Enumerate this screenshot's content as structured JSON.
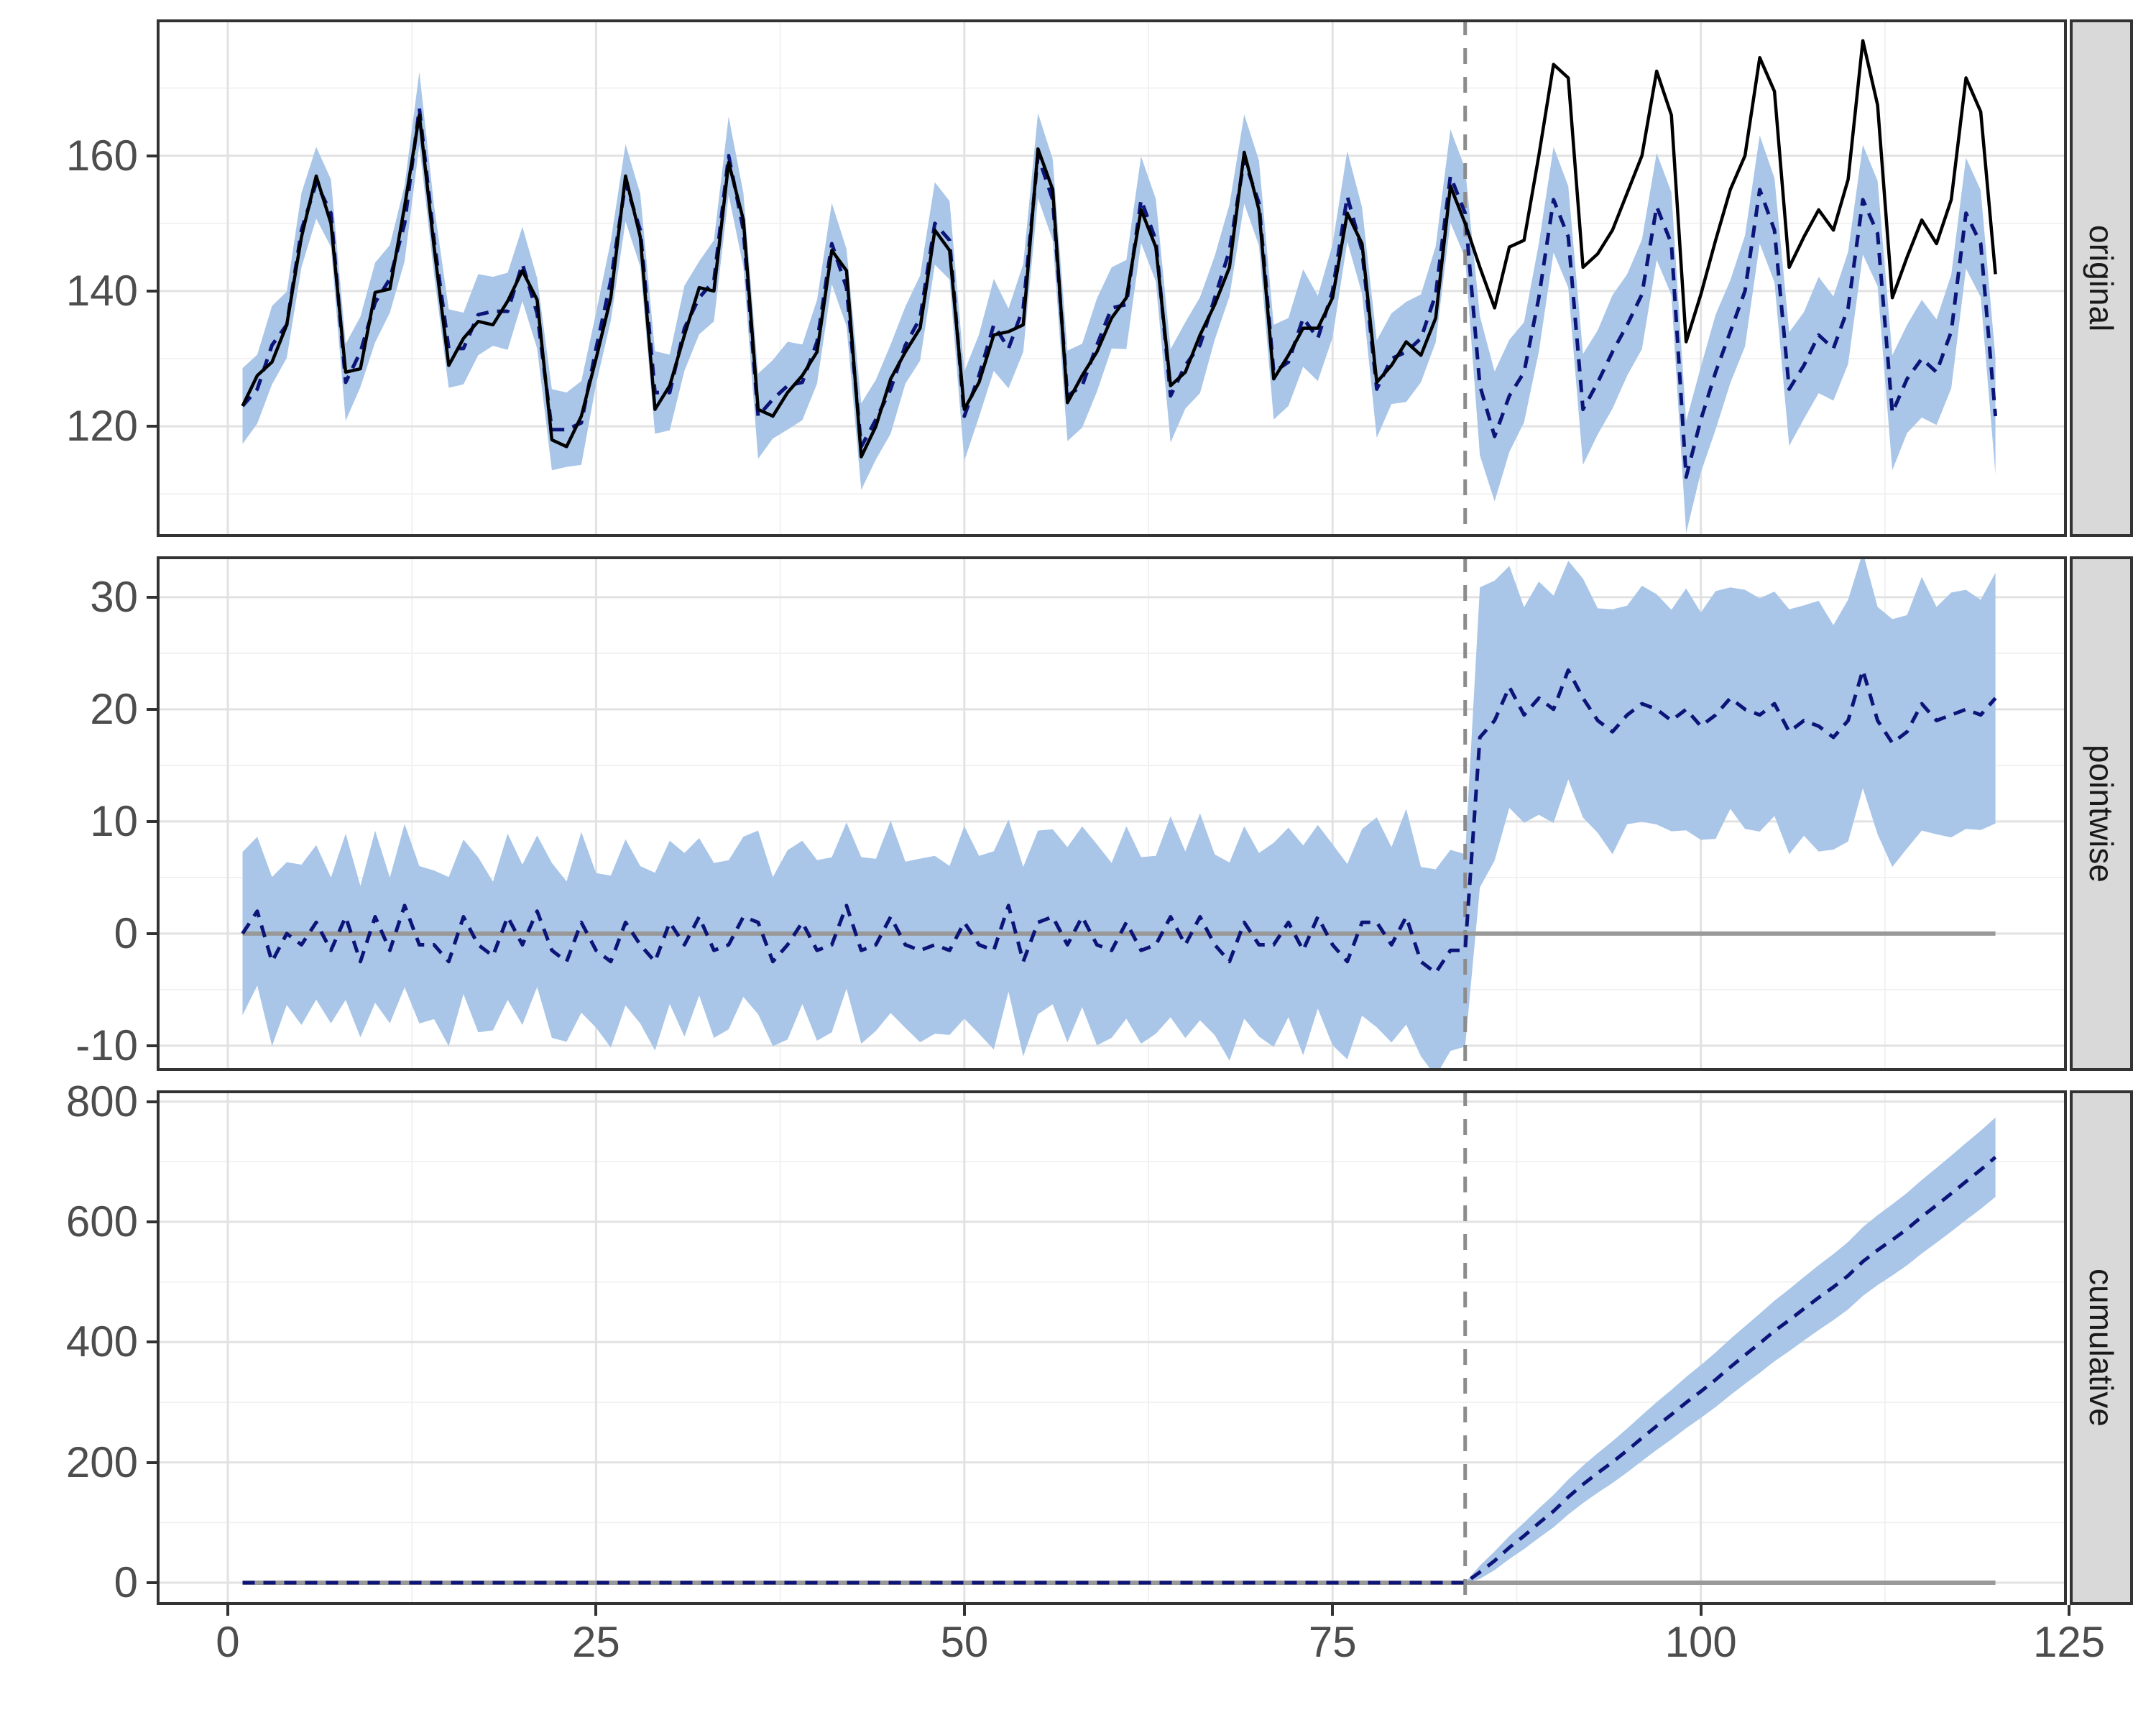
{
  "chart_data": [
    {
      "panel": "original",
      "type": "line",
      "strip_label": "original",
      "x_start": 1,
      "ylim": [
        103.65,
        180.15
      ],
      "yticks": [
        120,
        140,
        160
      ],
      "yticks_minor": [
        110,
        130,
        150,
        170
      ],
      "series": [
        {
          "name": "observed",
          "style": "solid-black",
          "values": [
            123,
            127.5,
            129.5,
            135,
            148,
            157,
            150,
            128,
            128.5,
            139.8,
            140.3,
            152.5,
            166,
            146.5,
            129,
            133,
            135.5,
            135,
            138.5,
            143,
            138.7,
            118,
            117,
            121.5,
            130,
            139,
            157,
            148,
            122.5,
            126,
            133.5,
            140.5,
            140,
            159,
            150.5,
            122.5,
            121.5,
            125,
            127.5,
            131,
            146,
            143,
            115.5,
            120,
            127,
            131,
            134.5,
            149,
            146,
            122.5,
            126.5,
            133.5,
            134,
            135,
            161,
            155,
            123.5,
            127.5,
            131,
            136,
            139,
            152,
            146.5,
            126,
            128,
            133.5,
            138,
            143.5,
            160.5,
            152,
            127,
            130.5,
            134.5,
            134.5,
            139,
            151.5,
            147,
            126.5,
            129,
            132.5,
            130.5,
            136,
            155.5,
            150,
            143.5,
            137.5,
            146.5,
            147.5,
            160,
            173.5,
            171.5,
            143.5,
            145.5,
            149,
            154.5,
            160,
            172.5,
            166,
            132.5,
            139.5,
            147.5,
            155,
            160,
            174.5,
            169.5,
            143.5,
            148,
            152,
            149,
            156.5,
            177,
            167.5,
            139,
            145,
            150.5,
            147,
            153.5,
            171.5,
            166.5,
            142.5
          ]
        },
        {
          "name": "predicted",
          "style": "dashed-navy",
          "values": [
            123,
            125.5,
            132,
            135,
            149,
            156,
            151.5,
            126.5,
            131,
            138.3,
            141.8,
            150,
            167,
            147.5,
            131.5,
            131.5,
            136.5,
            137,
            137,
            144,
            136.7,
            119.5,
            119.5,
            120.5,
            131.5,
            141.5,
            156,
            149,
            125,
            125,
            134.5,
            139,
            141.5,
            160,
            149,
            121.5,
            124,
            126,
            126.5,
            132.5,
            147,
            140.5,
            117,
            121,
            125.5,
            132,
            136,
            150,
            147.5,
            121.5,
            127.5,
            135,
            131.5,
            137.5,
            160,
            153.5,
            124.5,
            126,
            132,
            137.5,
            138,
            153.5,
            147.5,
            124.5,
            129,
            132,
            139,
            146,
            159.5,
            153,
            128,
            129.5,
            136,
            133,
            140,
            154,
            146,
            125.5,
            130,
            131,
            133,
            139.5,
            157,
            151.5,
            126,
            118.5,
            124.5,
            128,
            139,
            153.5,
            148,
            122.5,
            126.5,
            131,
            135,
            139.5,
            152.5,
            147,
            112.5,
            121,
            128,
            134,
            140,
            155,
            149,
            125.5,
            129,
            133.5,
            131.5,
            137.5,
            153.5,
            148.5,
            122,
            127,
            130,
            128,
            134,
            151.5,
            147,
            121.5
          ]
        }
      ],
      "ribbon": {
        "around": "predicted",
        "halfwidth": [
          5.6,
          5.1,
          5.8,
          4.9,
          5.5,
          5.3,
          5.0,
          5.7,
          5.2,
          5.9,
          5.0,
          5.6,
          5.4,
          5.1,
          5.8,
          5.3,
          6.0,
          5.1,
          5.7,
          5.5,
          5.2,
          6.0,
          5.5,
          6.2,
          5.3,
          5.9,
          5.7,
          5.4,
          6.1,
          5.6,
          6.3,
          5.4,
          6.0,
          5.8,
          5.5,
          6.3,
          5.8,
          6.5,
          5.6,
          6.2,
          6.0,
          5.7,
          6.4,
          5.9,
          6.6,
          5.7,
          6.3,
          6.1,
          5.8,
          6.6,
          6.1,
          6.8,
          5.9,
          6.5,
          6.3,
          6.0,
          6.7,
          6.2,
          6.9,
          6.0,
          6.6,
          6.4,
          6.1,
          6.9,
          6.4,
          7.1,
          6.2,
          6.8,
          6.6,
          6.3,
          7.0,
          6.5,
          7.2,
          6.3,
          6.9,
          6.7,
          6.4,
          7.2,
          6.7,
          7.4,
          6.5,
          7.1,
          6.9,
          6.6,
          10.3,
          9.6,
          8.3,
          7.4,
          8.0,
          7.8,
          7.5,
          8.2,
          7.7,
          8.4,
          7.5,
          8.1,
          7.9,
          7.6,
          8.3,
          7.8,
          8.5,
          7.6,
          8.2,
          8.0,
          7.7,
          8.4,
          7.9,
          8.6,
          7.7,
          8.3,
          8.1,
          7.8,
          8.5,
          8.0,
          8.7,
          7.8,
          8.4,
          8.2,
          7.9,
          8.6
        ]
      }
    },
    {
      "panel": "pointwise",
      "type": "line",
      "strip_label": "pointwise",
      "derived": "observed_minus_predicted",
      "ribbon_scale": 1.3,
      "zero_line": true,
      "ylim": [
        -12.25,
        33.65
      ],
      "yticks": [
        -10,
        0,
        10,
        20,
        30
      ],
      "yticks_minor": [
        -5,
        5,
        15,
        25
      ]
    },
    {
      "panel": "cumulative",
      "type": "line",
      "strip_label": "cumulative",
      "zero_line": true,
      "pre_value": 0,
      "post_x_start": 85,
      "values_post": [
        17.5,
        36.5,
        58.5,
        78,
        99,
        119,
        142.5,
        163.5,
        182.5,
        200.5,
        220,
        240.5,
        260.5,
        279.5,
        299.5,
        318,
        337.5,
        358.5,
        378.5,
        398,
        418.5,
        436.5,
        455.5,
        474,
        491.5,
        510.5,
        534,
        553,
        570,
        588,
        608.5,
        627.5,
        647,
        667,
        686.5,
        707.5
      ],
      "ci_halfwidth_post": [
        11,
        15.6,
        19.1,
        22,
        24.6,
        26.9,
        29.1,
        31.1,
        33,
        34.8,
        36.5,
        38.1,
        39.7,
        41.2,
        42.6,
        44,
        45.4,
        46.7,
        47.9,
        49.2,
        50.4,
        51.6,
        52.8,
        53.9,
        55,
        56.1,
        57.2,
        58.2,
        59.2,
        60.2,
        61.2,
        62.2,
        63.2,
        64.1,
        65.1,
        66
      ],
      "ylim": [
        -37,
        818.6
      ],
      "yticks": [
        0,
        200,
        400,
        600,
        800
      ],
      "yticks_minor": [
        100,
        300,
        500,
        700
      ]
    }
  ],
  "x_axis": {
    "xlim": [
      -4.83,
      124.85
    ],
    "ticks": [
      0,
      25,
      50,
      75,
      100,
      125
    ],
    "tick_labels": [
      "0",
      "25",
      "50",
      "75",
      "100",
      "125"
    ],
    "ticks_minor": [
      12.5,
      37.5,
      62.5,
      87.5,
      112.5
    ]
  },
  "intervention_x": 84,
  "n_points": 120,
  "colors": {
    "ribbon": "#A9C6E8",
    "predicted": "#0D1478",
    "observed": "#000000",
    "zero_line": "#999999",
    "intervention_line": "#8C8C8C",
    "grid_major": "#E2E2E2",
    "grid_minor": "#F0F0F0",
    "panel_border": "#333333",
    "strip_bg": "#D9D9D9",
    "strip_text": "#1A1A1A",
    "axis_text": "#4D4D4D",
    "tick_mark": "#333333",
    "background": "#FFFFFF"
  }
}
